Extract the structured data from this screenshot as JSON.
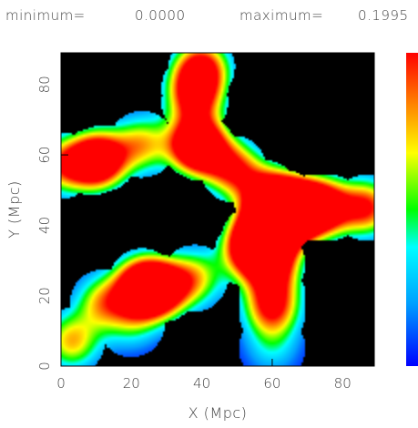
{
  "header": {
    "minimum_label": "minimum=",
    "minimum_value": "0.0000",
    "maximum_label": "maximum=",
    "maximum_value": "0.1995"
  },
  "chart_data": {
    "type": "heatmap",
    "title": "",
    "xlabel": "X (Mpc)",
    "ylabel": "Y (Mpc)",
    "xlim": [
      0,
      89
    ],
    "ylim": [
      0,
      89
    ],
    "x_ticks": [
      0,
      20,
      40,
      60,
      80
    ],
    "y_ticks": [
      0,
      20,
      40,
      60,
      80
    ],
    "colorbar": {
      "min": 0.0,
      "max": 0.1995,
      "colormap": "rainbow (blue-cyan-green-yellow-red)",
      "position": "right"
    },
    "background_color": "#000000",
    "smoothing_radius": 5.5,
    "peaks": [
      {
        "x": 40,
        "y": 85,
        "value": 0.19
      },
      {
        "x": 38,
        "y": 79,
        "value": 0.12
      },
      {
        "x": 38,
        "y": 75,
        "value": 0.12
      },
      {
        "x": 38,
        "y": 63,
        "value": 0.19
      },
      {
        "x": 40,
        "y": 62,
        "value": 0.16
      },
      {
        "x": 23,
        "y": 63,
        "value": 0.14
      },
      {
        "x": 12,
        "y": 59,
        "value": 0.14
      },
      {
        "x": 9,
        "y": 58,
        "value": 0.19
      },
      {
        "x": 0,
        "y": 57,
        "value": 0.15
      },
      {
        "x": 49,
        "y": 56,
        "value": 0.18
      },
      {
        "x": 58,
        "y": 49,
        "value": 0.17
      },
      {
        "x": 64,
        "y": 46,
        "value": 0.17
      },
      {
        "x": 72,
        "y": 45,
        "value": 0.19
      },
      {
        "x": 76,
        "y": 45,
        "value": 0.13
      },
      {
        "x": 87,
        "y": 45,
        "value": 0.19
      },
      {
        "x": 66,
        "y": 44,
        "value": 0.16
      },
      {
        "x": 62,
        "y": 41,
        "value": 0.19
      },
      {
        "x": 59,
        "y": 38,
        "value": 0.18
      },
      {
        "x": 55,
        "y": 36,
        "value": 0.18
      },
      {
        "x": 53,
        "y": 32,
        "value": 0.12
      },
      {
        "x": 60,
        "y": 29,
        "value": 0.19
      },
      {
        "x": 60,
        "y": 20,
        "value": 0.12
      },
      {
        "x": 60,
        "y": 15,
        "value": 0.12
      },
      {
        "x": 60,
        "y": 5,
        "value": 0.06
      },
      {
        "x": 38,
        "y": 25,
        "value": 0.13
      },
      {
        "x": 29,
        "y": 22,
        "value": 0.18
      },
      {
        "x": 24,
        "y": 21,
        "value": 0.19
      },
      {
        "x": 23,
        "y": 24,
        "value": 0.14
      },
      {
        "x": 12,
        "y": 18,
        "value": 0.14
      },
      {
        "x": 20,
        "y": 12,
        "value": 0.07
      },
      {
        "x": 3,
        "y": 7,
        "value": 0.15
      }
    ]
  }
}
